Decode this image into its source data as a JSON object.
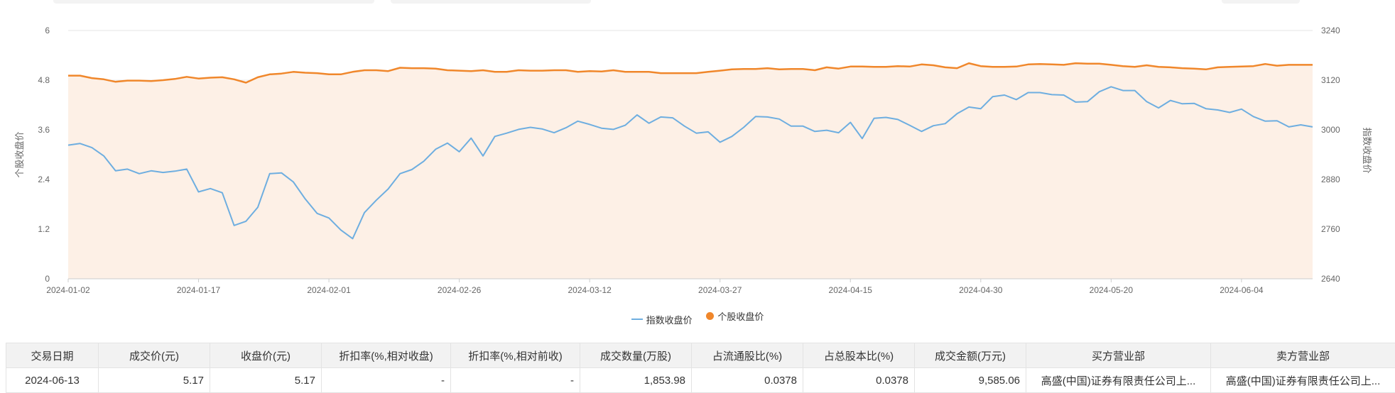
{
  "chart_data": {
    "type": "line",
    "x": [
      "2024-01-02",
      "2024-01-03",
      "2024-01-04",
      "2024-01-05",
      "2024-01-08",
      "2024-01-09",
      "2024-01-10",
      "2024-01-11",
      "2024-01-12",
      "2024-01-15",
      "2024-01-16",
      "2024-01-17",
      "2024-01-18",
      "2024-01-19",
      "2024-01-22",
      "2024-01-23",
      "2024-01-24",
      "2024-01-25",
      "2024-01-26",
      "2024-01-29",
      "2024-01-30",
      "2024-01-31",
      "2024-02-01",
      "2024-02-02",
      "2024-02-05",
      "2024-02-06",
      "2024-02-07",
      "2024-02-08",
      "2024-02-19",
      "2024-02-20",
      "2024-02-21",
      "2024-02-22",
      "2024-02-23",
      "2024-02-26",
      "2024-02-27",
      "2024-02-28",
      "2024-02-29",
      "2024-03-01",
      "2024-03-04",
      "2024-03-05",
      "2024-03-06",
      "2024-03-07",
      "2024-03-08",
      "2024-03-11",
      "2024-03-12",
      "2024-03-13",
      "2024-03-14",
      "2024-03-15",
      "2024-03-18",
      "2024-03-19",
      "2024-03-20",
      "2024-03-21",
      "2024-03-22",
      "2024-03-25",
      "2024-03-26",
      "2024-03-27",
      "2024-03-28",
      "2024-03-29",
      "2024-04-01",
      "2024-04-02",
      "2024-04-03",
      "2024-04-08",
      "2024-04-09",
      "2024-04-10",
      "2024-04-11",
      "2024-04-12",
      "2024-04-15",
      "2024-04-16",
      "2024-04-17",
      "2024-04-18",
      "2024-04-19",
      "2024-04-22",
      "2024-04-23",
      "2024-04-24",
      "2024-04-25",
      "2024-04-26",
      "2024-04-29",
      "2024-04-30",
      "2024-05-06",
      "2024-05-07",
      "2024-05-08",
      "2024-05-09",
      "2024-05-10",
      "2024-05-13",
      "2024-05-14",
      "2024-05-15",
      "2024-05-16",
      "2024-05-17",
      "2024-05-20",
      "2024-05-21",
      "2024-05-22",
      "2024-05-23",
      "2024-05-24",
      "2024-05-27",
      "2024-05-28",
      "2024-05-29",
      "2024-05-30",
      "2024-05-31",
      "2024-06-03",
      "2024-06-04",
      "2024-06-05",
      "2024-06-06",
      "2024-06-07",
      "2024-06-11",
      "2024-06-12",
      "2024-06-13"
    ],
    "x_ticks": [
      "2024-01-02",
      "2024-01-17",
      "2024-02-01",
      "2024-02-26",
      "2024-03-12",
      "2024-03-27",
      "2024-04-15",
      "2024-04-30",
      "2024-05-20",
      "2024-06-04"
    ],
    "series": [
      {
        "name": "指数收盘价",
        "axis": "right",
        "values": [
          2963,
          2967,
          2957,
          2937,
          2901,
          2905,
          2894,
          2901,
          2897,
          2900,
          2905,
          2850,
          2858,
          2848,
          2769,
          2779,
          2813,
          2894,
          2896,
          2874,
          2833,
          2798,
          2787,
          2758,
          2737,
          2800,
          2830,
          2857,
          2894,
          2904,
          2924,
          2953,
          2968,
          2947,
          2980,
          2937,
          2984,
          2992,
          3001,
          3006,
          3002,
          2993,
          3005,
          3021,
          3013,
          3004,
          3001,
          3011,
          3036,
          3016,
          3031,
          3029,
          3009,
          2992,
          2995,
          2970,
          2984,
          3006,
          3032,
          3031,
          3026,
          3009,
          3009,
          2996,
          2999,
          2993,
          3018,
          2979,
          3028,
          3030,
          3025,
          3011,
          2996,
          3010,
          3015,
          3039,
          3055,
          3051,
          3080,
          3084,
          3073,
          3090,
          3090,
          3085,
          3084,
          3067,
          3068,
          3092,
          3104,
          3095,
          3095,
          3068,
          3053,
          3071,
          3063,
          3064,
          3051,
          3048,
          3042,
          3050,
          3032,
          3021,
          3022,
          3007,
          3012,
          3007
        ]
      },
      {
        "name": "个股收盘价",
        "axis": "left",
        "values": [
          4.91,
          4.91,
          4.85,
          4.82,
          4.76,
          4.79,
          4.79,
          4.78,
          4.8,
          4.83,
          4.88,
          4.84,
          4.86,
          4.87,
          4.82,
          4.74,
          4.87,
          4.94,
          4.96,
          5.0,
          4.98,
          4.97,
          4.94,
          4.94,
          5.0,
          5.04,
          5.04,
          5.02,
          5.1,
          5.09,
          5.09,
          5.08,
          5.04,
          5.03,
          5.02,
          5.04,
          5.0,
          5.0,
          5.04,
          5.03,
          5.03,
          5.04,
          5.04,
          5.0,
          5.02,
          5.01,
          5.04,
          5.0,
          5.0,
          5.0,
          4.97,
          4.97,
          4.97,
          4.97,
          5.0,
          5.03,
          5.06,
          5.07,
          5.07,
          5.09,
          5.06,
          5.07,
          5.07,
          5.04,
          5.11,
          5.08,
          5.13,
          5.13,
          5.12,
          5.12,
          5.14,
          5.13,
          5.18,
          5.16,
          5.11,
          5.09,
          5.21,
          5.14,
          5.12,
          5.12,
          5.13,
          5.18,
          5.19,
          5.18,
          5.17,
          5.21,
          5.2,
          5.2,
          5.17,
          5.14,
          5.12,
          5.16,
          5.12,
          5.11,
          5.09,
          5.08,
          5.06,
          5.11,
          5.12,
          5.13,
          5.14,
          5.19,
          5.15,
          5.17,
          5.17,
          5.17
        ]
      }
    ],
    "y_left": {
      "label": "个股收盘价",
      "min": 0,
      "max": 6,
      "ticks": [
        "0",
        "1.2",
        "2.4",
        "3.6",
        "4.8",
        "6"
      ]
    },
    "y_right": {
      "label": "指数收盘价",
      "min": 2640,
      "max": 3240,
      "ticks": [
        "2640",
        "2760",
        "2880",
        "3000",
        "3120",
        "3240"
      ]
    },
    "grid": true,
    "legend": "bottom-center",
    "colors": {
      "index_line": "#6eaee0",
      "stock_line": "#f0872b",
      "area_fill": "#fdf0e6",
      "grid": "#e6e6e6"
    }
  },
  "legend": {
    "items": [
      {
        "label": "指数收盘价",
        "color": "#6eaee0"
      },
      {
        "label": "个股收盘价",
        "color": "#f0872b"
      }
    ]
  },
  "table": {
    "headers": [
      "交易日期",
      "成交价(元)",
      "收盘价(元)",
      "折扣率(%,相对收盘)",
      "折扣率(%,相对前收)",
      "成交数量(万股)",
      "占流通股比(%)",
      "占总股本比(%)",
      "成交金额(万元)",
      "买方营业部",
      "卖方营业部"
    ],
    "rows": [
      [
        "2024-06-13",
        "5.17",
        "5.17",
        "-",
        "-",
        "1,853.98",
        "0.0378",
        "0.0378",
        "9,585.06",
        "高盛(中国)证券有限责任公司上...",
        "高盛(中国)证券有限责任公司上..."
      ]
    ]
  }
}
